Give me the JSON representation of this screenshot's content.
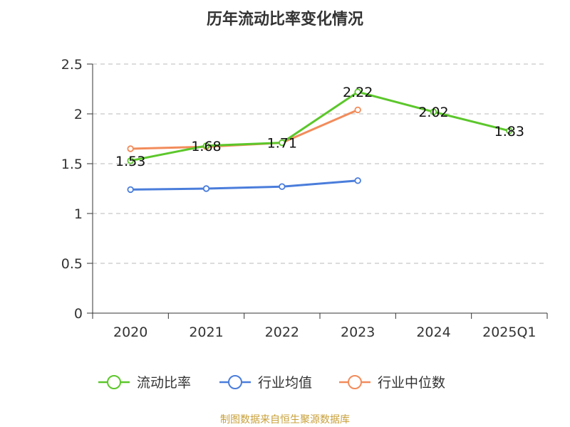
{
  "chart_data": {
    "type": "line",
    "title": "历年流动比率变化情况",
    "categories": [
      "2020",
      "2021",
      "2022",
      "2023",
      "2024",
      "2025Q1"
    ],
    "ylim": [
      0,
      2.5
    ],
    "yticks": [
      "0",
      "0.5",
      "1",
      "1.5",
      "2",
      "2.5"
    ],
    "ytick_values": [
      0,
      0.5,
      1,
      1.5,
      2,
      2.5
    ],
    "grid": true,
    "xlabel": "",
    "ylabel": "",
    "series": [
      {
        "name": "流动比率",
        "color": "#5cc72b",
        "values": [
          1.53,
          1.68,
          1.71,
          2.22,
          2.02,
          1.83
        ],
        "labels": [
          "1.53",
          "1.68",
          "1.71",
          "2.22",
          "2.02",
          "1.83"
        ],
        "show_labels": true
      },
      {
        "name": "行业均值",
        "color": "#4a7ddb",
        "values": [
          1.24,
          1.25,
          1.27,
          1.33,
          null,
          null
        ],
        "labels": [],
        "show_labels": false
      },
      {
        "name": "行业中位数",
        "color": "#f28c5b",
        "values": [
          1.65,
          1.67,
          1.71,
          2.04,
          null,
          null
        ],
        "labels": [],
        "show_labels": false
      }
    ],
    "legend_position": "bottom",
    "source": "制图数据来自恒生聚源数据库",
    "source_color": "#c8a03a"
  }
}
